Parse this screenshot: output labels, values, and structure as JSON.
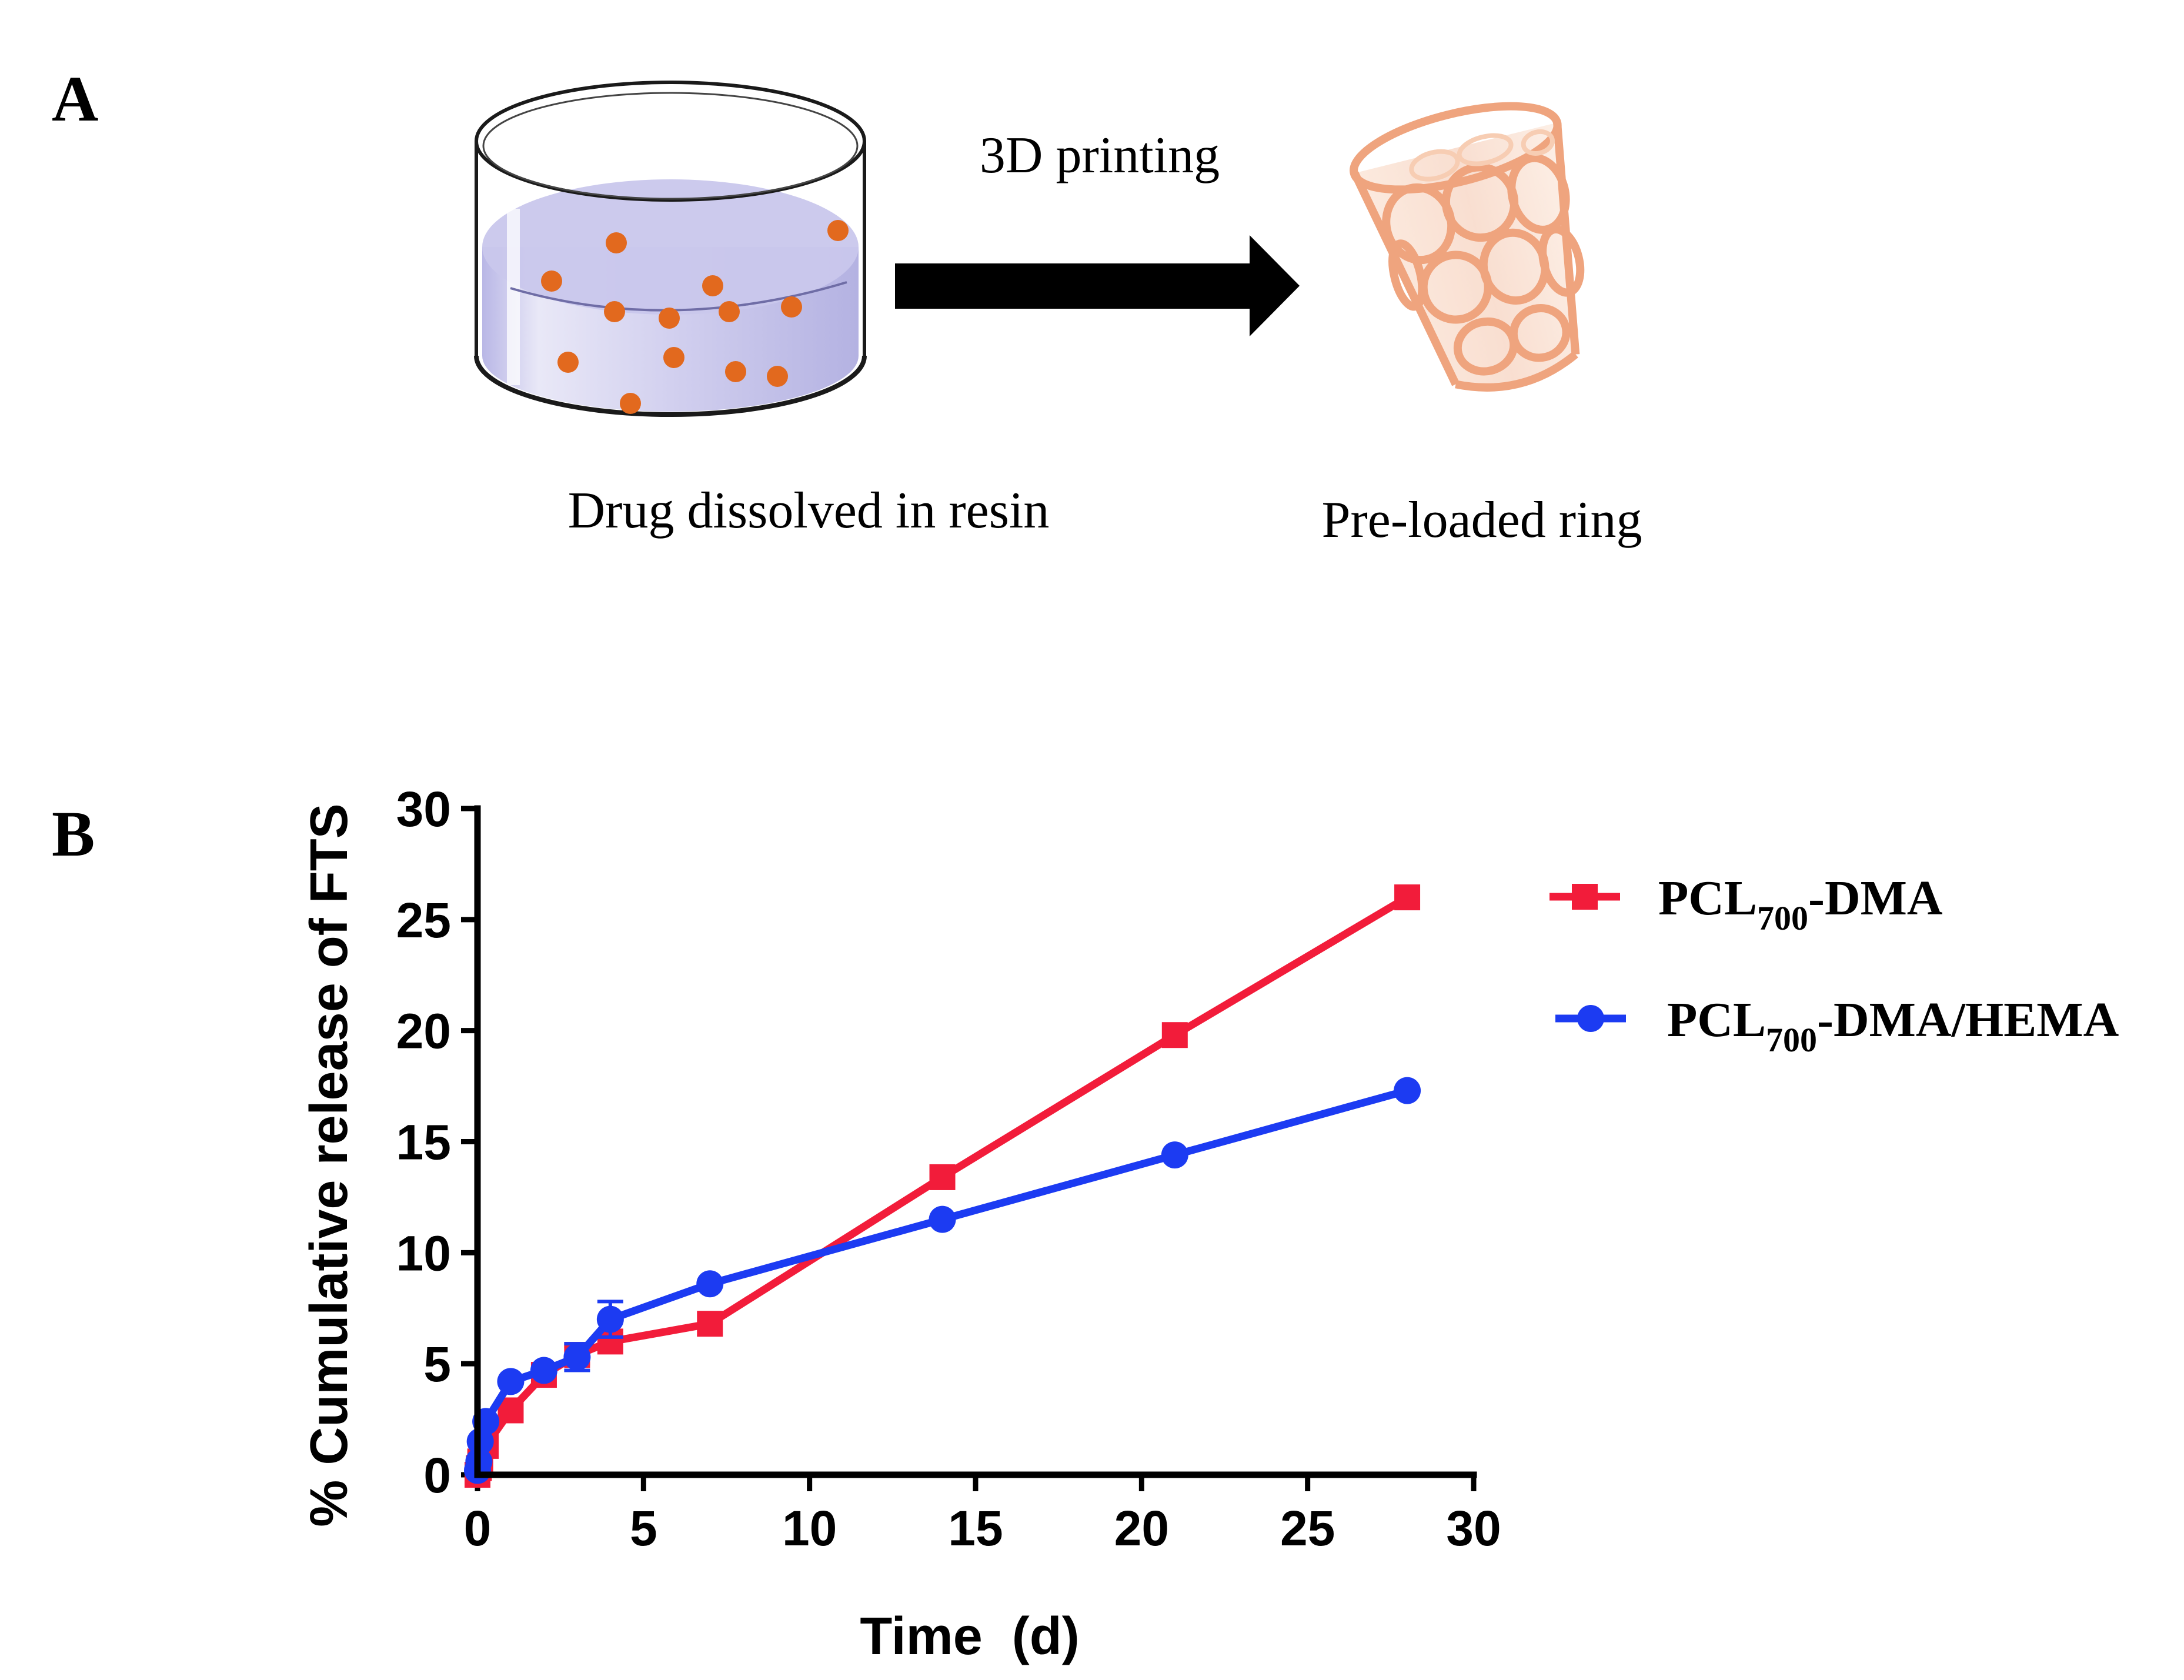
{
  "panel_a": {
    "label": "A",
    "arrow_label": "3D printing",
    "left_caption": "Drug dissolved in resin",
    "right_caption": "Pre-loaded ring",
    "colors": {
      "particles": "#E2691E",
      "ring": "#F0B08C",
      "resin": "#C9C7EC",
      "arrow": "#000000"
    }
  },
  "panel_b": {
    "label": "B"
  },
  "chart_data": {
    "type": "line",
    "title": "",
    "xlabel": "Time  (d)",
    "ylabel": "% Cumulative release of FTS",
    "xlim": [
      0,
      30
    ],
    "ylim": [
      0,
      30
    ],
    "xticks": [
      0,
      5,
      10,
      15,
      20,
      25,
      30
    ],
    "yticks": [
      0,
      5,
      10,
      15,
      20,
      25,
      30
    ],
    "grid": false,
    "legend_position": "right",
    "series": [
      {
        "name_main": "PCL",
        "name_sub": "700",
        "name_suffix": "-DMA",
        "color": "#F21C3A",
        "marker": "square",
        "x": [
          0,
          0.042,
          0.083,
          0.25,
          1,
          2,
          3,
          4,
          7,
          14,
          21,
          28
        ],
        "y": [
          0,
          0.3,
          0.6,
          1.3,
          2.9,
          4.5,
          5.4,
          6.0,
          6.8,
          13.4,
          19.8,
          26.0
        ],
        "err": [
          0,
          0,
          0,
          0,
          0,
          0,
          0.4,
          0,
          0,
          0,
          0,
          0
        ]
      },
      {
        "name_main": "PCL",
        "name_sub": "700",
        "name_suffix": "-DMA/HEMA",
        "color": "#1C3BF2",
        "marker": "circle",
        "x": [
          0,
          0.042,
          0.083,
          0.25,
          1,
          2,
          3,
          4,
          7,
          14,
          21,
          28
        ],
        "y": [
          0.2,
          0.6,
          1.5,
          2.4,
          4.2,
          4.7,
          5.3,
          7.0,
          8.6,
          11.5,
          14.4,
          17.3
        ],
        "err": [
          0,
          0,
          0,
          0,
          0,
          0,
          0.6,
          0.8,
          0,
          0,
          0,
          0
        ]
      }
    ]
  }
}
